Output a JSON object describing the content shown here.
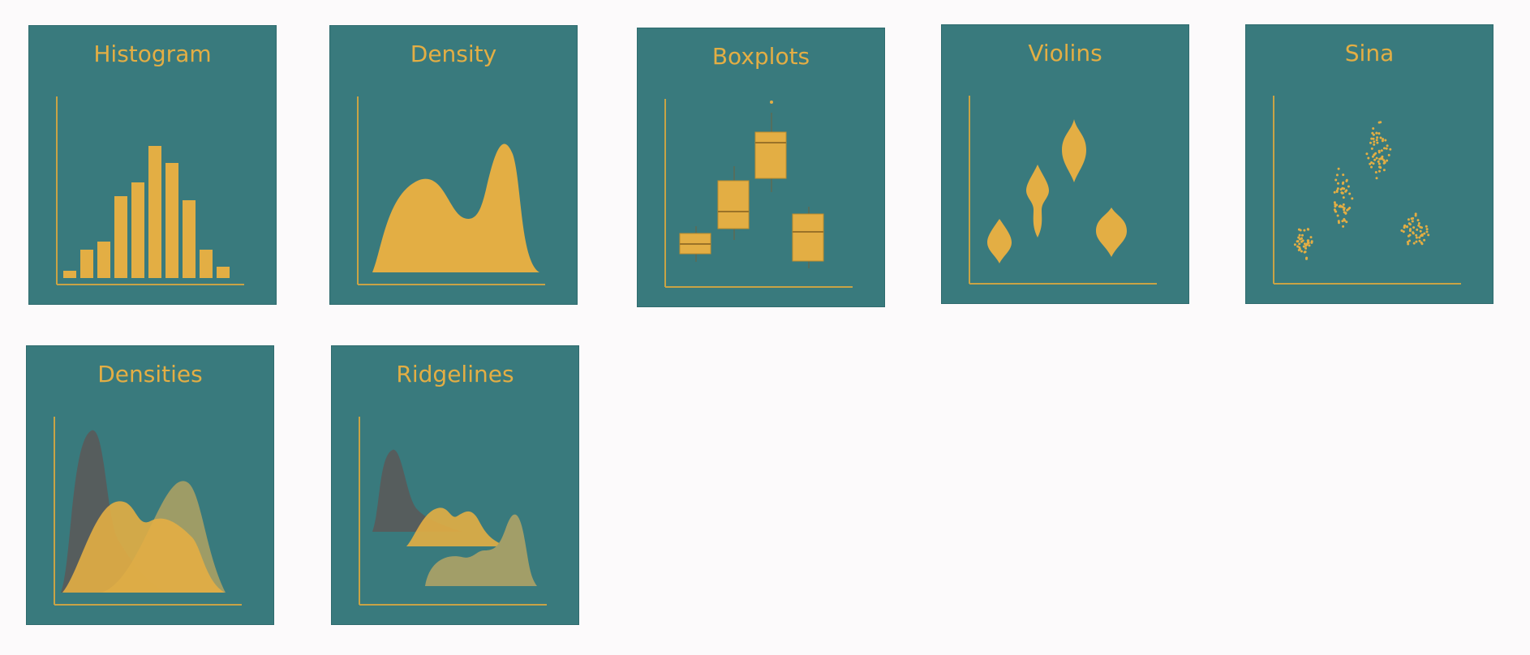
{
  "colors": {
    "page_background": "#fcfafb",
    "tile_background": "#397a7d",
    "accent": "#e3ae44",
    "dark_shape": "#5a5a5a"
  },
  "tiles": [
    {
      "title": "Histogram"
    },
    {
      "title": "Density"
    },
    {
      "title": "Boxplots"
    },
    {
      "title": "Violins"
    },
    {
      "title": "Sina"
    },
    {
      "title": "Densities"
    },
    {
      "title": "Ridgelines"
    }
  ]
}
